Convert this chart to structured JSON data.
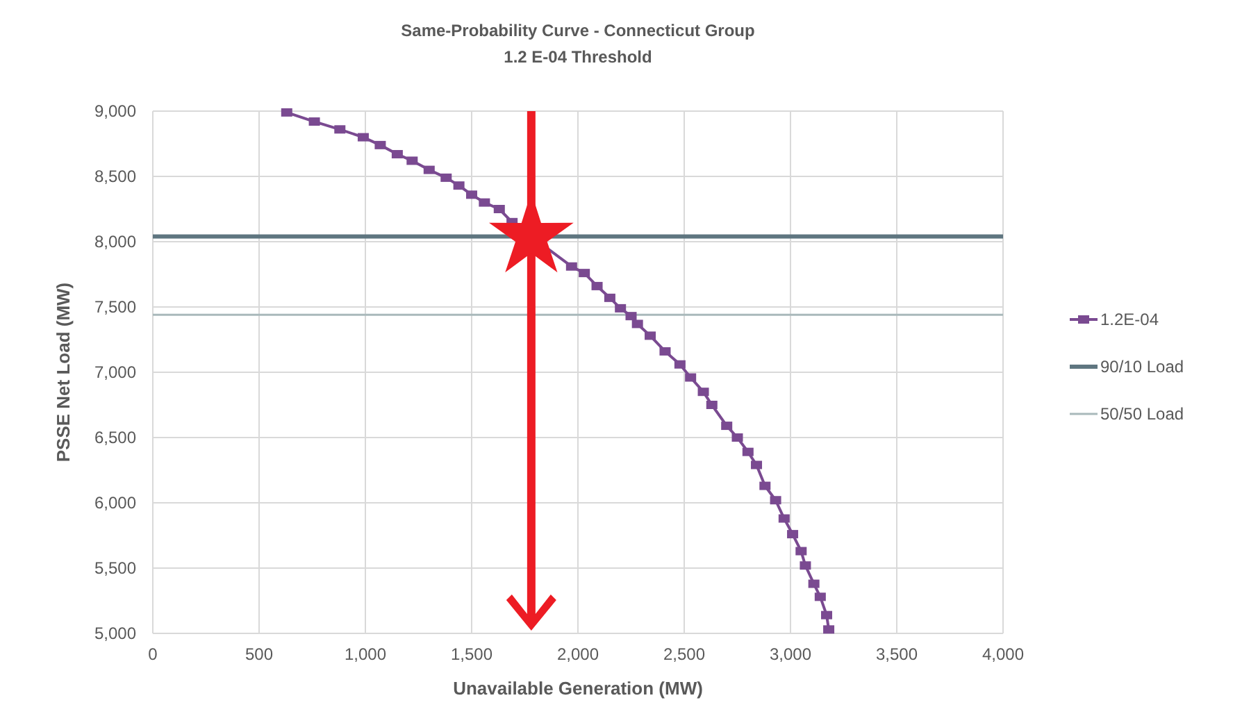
{
  "chart_data": {
    "type": "line",
    "title": "Same-Probability Curve - Connecticut Group",
    "subtitle": "1.2 E-04 Threshold",
    "xlabel": "Unavailable Generation (MW)",
    "ylabel": "PSSE Net Load (MW)",
    "xlim": [
      0,
      4000
    ],
    "xticks": [
      {
        "value": 0,
        "label": "0"
      },
      {
        "value": 500,
        "label": "500"
      },
      {
        "value": 1000,
        "label": "1,000"
      },
      {
        "value": 1500,
        "label": "1,500"
      },
      {
        "value": 2000,
        "label": "2,000"
      },
      {
        "value": 2500,
        "label": "2,500"
      },
      {
        "value": 3000,
        "label": "3,000"
      },
      {
        "value": 3500,
        "label": "3,500"
      },
      {
        "value": 4000,
        "label": "4,000"
      }
    ],
    "ylim": [
      5000,
      9000
    ],
    "yticks": [
      {
        "value": 5000,
        "label": "5,000"
      },
      {
        "value": 5500,
        "label": "5,500"
      },
      {
        "value": 6000,
        "label": "6,000"
      },
      {
        "value": 6500,
        "label": "6,500"
      },
      {
        "value": 7000,
        "label": "7,000"
      },
      {
        "value": 7500,
        "label": "7,500"
      },
      {
        "value": 8000,
        "label": "8,000"
      },
      {
        "value": 8500,
        "label": "8,500"
      },
      {
        "value": 9000,
        "label": "9,000"
      }
    ],
    "grid": true,
    "legend": "right",
    "marker": "square",
    "line_style": "solid",
    "series": [
      {
        "name": "1.2E-04",
        "color": "#7a4a91",
        "x": [
          630,
          760,
          880,
          990,
          1070,
          1150,
          1220,
          1300,
          1380,
          1440,
          1500,
          1560,
          1630,
          1690,
          1970,
          2030,
          2090,
          2150,
          2200,
          2250,
          2280,
          2340,
          2410,
          2480,
          2530,
          2590,
          2630,
          2700,
          2750,
          2800,
          2840,
          2880,
          2930,
          2970,
          3010,
          3050,
          3070,
          3110,
          3140,
          3170,
          3180
        ],
        "values": [
          8990,
          8920,
          8860,
          8800,
          8740,
          8670,
          8620,
          8550,
          8490,
          8430,
          8360,
          8300,
          8250,
          8150,
          7810,
          7760,
          7660,
          7570,
          7490,
          7430,
          7370,
          7280,
          7160,
          7060,
          6960,
          6850,
          6750,
          6590,
          6500,
          6390,
          6290,
          6130,
          6020,
          5880,
          5760,
          5630,
          5520,
          5380,
          5280,
          5140,
          5030
        ]
      }
    ],
    "ref_lines": [
      {
        "axis": "y",
        "value": 8040,
        "label": "90/10 Load",
        "color": "#5f7680"
      },
      {
        "axis": "y",
        "value": 7440,
        "label": "50/50 Load",
        "color": "#a9b9bb"
      }
    ]
  }
}
